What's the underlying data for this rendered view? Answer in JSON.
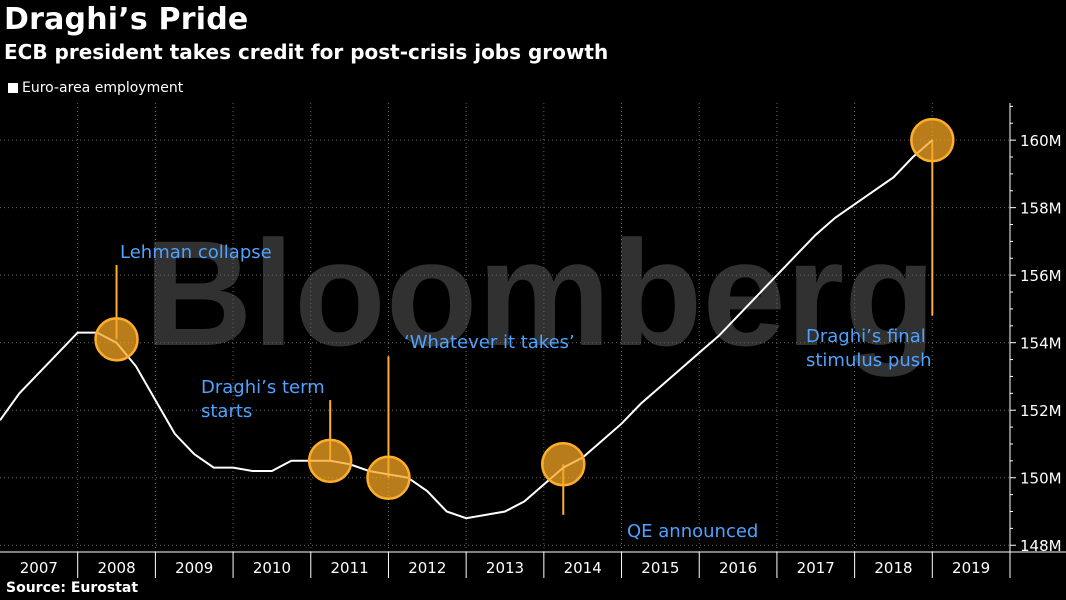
{
  "title": "Draghi’s Pride",
  "subtitle": "ECB president takes credit for post-crisis jobs growth",
  "legend_label": "Euro-area employment",
  "source": "Source: Eurostat",
  "watermark": "Bloomberg",
  "colors": {
    "background": "#000000",
    "line": "#ffffff",
    "marker_fill": "#f5a623",
    "marker_stroke": "#ffae2b",
    "annotation_text": "#4da3ff",
    "grid": "#666666"
  },
  "chart_data": {
    "type": "line",
    "title": "Draghi’s Pride",
    "subtitle": "ECB president takes credit for post-crisis jobs growth",
    "ylabel": "",
    "xlabel": "",
    "ylim": [
      147.8,
      161.1
    ],
    "xlim": [
      2007.0,
      2020.0
    ],
    "grid": true,
    "legend_position": "top-left",
    "y_ticks": [
      148,
      150,
      152,
      154,
      156,
      158,
      160
    ],
    "y_tick_labels": [
      "148M",
      "150M",
      "152M",
      "154M",
      "156M",
      "158M",
      "160M"
    ],
    "x_tick_labels": [
      "2007",
      "2008",
      "2009",
      "2010",
      "2011",
      "2012",
      "2013",
      "2014",
      "2015",
      "2016",
      "2017",
      "2018",
      "2019"
    ],
    "series": [
      {
        "name": "Euro-area employment",
        "points": [
          [
            2007.0,
            151.7
          ],
          [
            2007.25,
            152.5
          ],
          [
            2007.5,
            153.1
          ],
          [
            2007.75,
            153.7
          ],
          [
            2008.0,
            154.3
          ],
          [
            2008.25,
            154.3
          ],
          [
            2008.5,
            154.0
          ],
          [
            2008.75,
            153.3
          ],
          [
            2009.0,
            152.3
          ],
          [
            2009.25,
            151.3
          ],
          [
            2009.5,
            150.7
          ],
          [
            2009.75,
            150.3
          ],
          [
            2010.0,
            150.3
          ],
          [
            2010.25,
            150.2
          ],
          [
            2010.5,
            150.2
          ],
          [
            2010.75,
            150.5
          ],
          [
            2011.0,
            150.5
          ],
          [
            2011.25,
            150.5
          ],
          [
            2011.5,
            150.4
          ],
          [
            2011.75,
            150.2
          ],
          [
            2012.0,
            150.1
          ],
          [
            2012.25,
            150.0
          ],
          [
            2012.5,
            149.6
          ],
          [
            2012.75,
            149.0
          ],
          [
            2013.0,
            148.8
          ],
          [
            2013.25,
            148.9
          ],
          [
            2013.5,
            149.0
          ],
          [
            2013.75,
            149.3
          ],
          [
            2014.0,
            149.8
          ],
          [
            2014.25,
            150.3
          ],
          [
            2014.5,
            150.6
          ],
          [
            2014.75,
            151.1
          ],
          [
            2015.0,
            151.6
          ],
          [
            2015.25,
            152.2
          ],
          [
            2015.5,
            152.7
          ],
          [
            2015.75,
            153.2
          ],
          [
            2016.0,
            153.7
          ],
          [
            2016.25,
            154.2
          ],
          [
            2016.5,
            154.8
          ],
          [
            2016.75,
            155.4
          ],
          [
            2017.0,
            156.0
          ],
          [
            2017.25,
            156.6
          ],
          [
            2017.5,
            157.2
          ],
          [
            2017.75,
            157.7
          ],
          [
            2018.0,
            158.1
          ],
          [
            2018.25,
            158.5
          ],
          [
            2018.5,
            158.9
          ],
          [
            2018.75,
            159.5
          ],
          [
            2019.0,
            160.0
          ]
        ]
      }
    ],
    "annotations": [
      {
        "label": [
          "Lehman collapse"
        ],
        "x": 2008.5,
        "y": 154.1
      },
      {
        "label": [
          "Draghi’s term",
          "starts"
        ],
        "x": 2011.25,
        "y": 150.5
      },
      {
        "label": [
          "‘Whatever it takes’"
        ],
        "x": 2012.0,
        "y": 150.0
      },
      {
        "label": [
          "QE announced"
        ],
        "x": 2014.25,
        "y": 150.4
      },
      {
        "label": [
          "Draghi’s final",
          "stimulus push"
        ],
        "x": 2019.0,
        "y": 160.0
      }
    ]
  }
}
